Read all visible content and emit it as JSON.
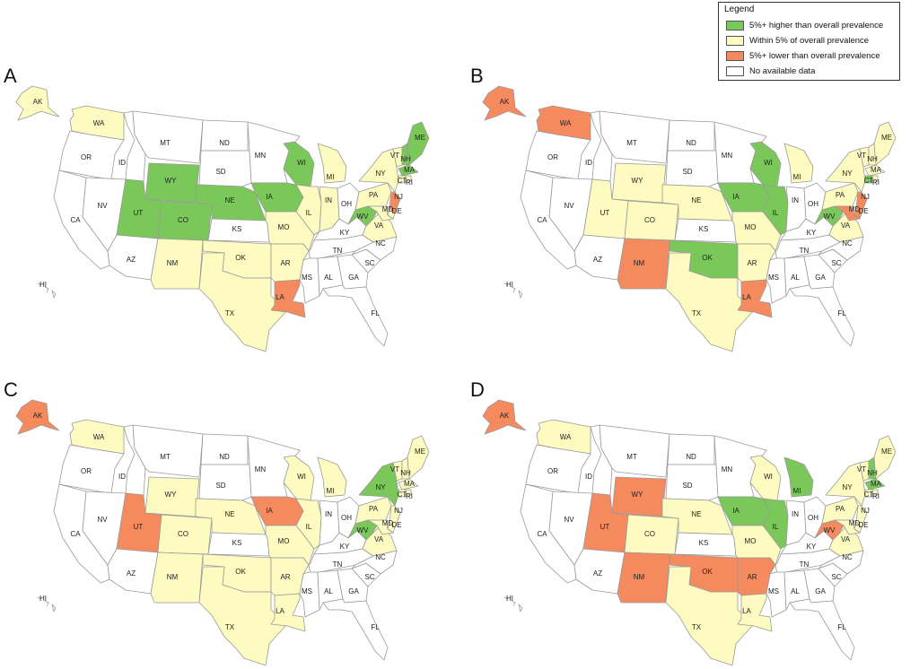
{
  "colors": {
    "higher": "#7bc85a",
    "within": "#fdfbc0",
    "lower": "#f58a5f",
    "nodata": "#ffffff",
    "border": "#9a9a9a"
  },
  "legend": {
    "title": "Legend",
    "items": [
      {
        "key": "higher",
        "label": "5%+ higher than overall prevalence"
      },
      {
        "key": "within",
        "label": "Within 5% of overall prevalence"
      },
      {
        "key": "lower",
        "label": "5%+ lower than overall prevalence"
      },
      {
        "key": "nodata",
        "label": "No available data"
      }
    ]
  },
  "panels": [
    {
      "letter": "A",
      "states": {
        "AK": "within",
        "HI": "nodata",
        "WA": "within",
        "OR": "nodata",
        "CA": "nodata",
        "ID": "nodata",
        "NV": "nodata",
        "AZ": "nodata",
        "MT": "nodata",
        "WY": "higher",
        "UT": "higher",
        "CO": "higher",
        "NM": "within",
        "ND": "nodata",
        "SD": "nodata",
        "NE": "higher",
        "KS": "nodata",
        "OK": "within",
        "TX": "within",
        "MN": "nodata",
        "IA": "higher",
        "MO": "within",
        "AR": "within",
        "LA": "lower",
        "WI": "higher",
        "IL": "within",
        "MI": "within",
        "IN": "within",
        "OH": "nodata",
        "KY": "nodata",
        "TN": "nodata",
        "MS": "nodata",
        "AL": "nodata",
        "GA": "nodata",
        "FL": "nodata",
        "SC": "nodata",
        "NC": "nodata",
        "VA": "within",
        "WV": "higher",
        "PA": "within",
        "NY": "within",
        "VT": "within",
        "NH": "higher",
        "ME": "higher",
        "MA": "higher",
        "CT": "within",
        "RI": "within",
        "NJ": "lower",
        "DE": "within",
        "MD": "within"
      }
    },
    {
      "letter": "B",
      "states": {
        "AK": "lower",
        "HI": "nodata",
        "WA": "lower",
        "OR": "nodata",
        "CA": "nodata",
        "ID": "nodata",
        "NV": "nodata",
        "AZ": "nodata",
        "MT": "nodata",
        "WY": "within",
        "UT": "within",
        "CO": "within",
        "NM": "lower",
        "ND": "nodata",
        "SD": "nodata",
        "NE": "within",
        "KS": "nodata",
        "OK": "higher",
        "TX": "within",
        "MN": "nodata",
        "IA": "higher",
        "MO": "within",
        "AR": "within",
        "LA": "lower",
        "WI": "higher",
        "IL": "higher",
        "MI": "within",
        "IN": "nodata",
        "OH": "nodata",
        "KY": "nodata",
        "TN": "nodata",
        "MS": "nodata",
        "AL": "nodata",
        "GA": "nodata",
        "FL": "nodata",
        "SC": "nodata",
        "NC": "nodata",
        "VA": "within",
        "WV": "higher",
        "PA": "within",
        "NY": "within",
        "VT": "within",
        "NH": "within",
        "ME": "within",
        "MA": "within",
        "CT": "higher",
        "RI": "within",
        "NJ": "lower",
        "DE": "lower",
        "MD": "lower"
      }
    },
    {
      "letter": "C",
      "states": {
        "AK": "lower",
        "HI": "nodata",
        "WA": "within",
        "OR": "nodata",
        "CA": "nodata",
        "ID": "nodata",
        "NV": "nodata",
        "AZ": "nodata",
        "MT": "nodata",
        "WY": "within",
        "UT": "lower",
        "CO": "within",
        "NM": "within",
        "ND": "nodata",
        "SD": "nodata",
        "NE": "within",
        "KS": "nodata",
        "OK": "within",
        "TX": "within",
        "MN": "nodata",
        "IA": "lower",
        "MO": "within",
        "AR": "within",
        "LA": "within",
        "WI": "within",
        "IL": "within",
        "MI": "within",
        "IN": "nodata",
        "OH": "nodata",
        "KY": "nodata",
        "TN": "nodata",
        "MS": "nodata",
        "AL": "nodata",
        "GA": "nodata",
        "FL": "nodata",
        "SC": "nodata",
        "NC": "nodata",
        "VA": "within",
        "WV": "higher",
        "PA": "within",
        "NY": "higher",
        "VT": "within",
        "NH": "within",
        "ME": "within",
        "MA": "within",
        "CT": "within",
        "RI": "within",
        "NJ": "within",
        "DE": "within",
        "MD": "within"
      }
    },
    {
      "letter": "D",
      "states": {
        "AK": "lower",
        "HI": "nodata",
        "WA": "within",
        "OR": "nodata",
        "CA": "nodata",
        "ID": "nodata",
        "NV": "nodata",
        "AZ": "nodata",
        "MT": "nodata",
        "WY": "lower",
        "UT": "lower",
        "CO": "within",
        "NM": "lower",
        "ND": "nodata",
        "SD": "nodata",
        "NE": "within",
        "KS": "nodata",
        "OK": "lower",
        "TX": "within",
        "MN": "nodata",
        "IA": "higher",
        "MO": "within",
        "AR": "lower",
        "LA": "within",
        "WI": "within",
        "IL": "higher",
        "MI": "higher",
        "IN": "nodata",
        "OH": "nodata",
        "KY": "nodata",
        "TN": "nodata",
        "MS": "nodata",
        "AL": "nodata",
        "GA": "nodata",
        "FL": "nodata",
        "SC": "nodata",
        "NC": "nodata",
        "VA": "within",
        "WV": "lower",
        "PA": "within",
        "NY": "within",
        "VT": "within",
        "NH": "higher",
        "ME": "within",
        "MA": "higher",
        "CT": "within",
        "RI": "within",
        "NJ": "within",
        "DE": "within",
        "MD": "within"
      }
    }
  ]
}
